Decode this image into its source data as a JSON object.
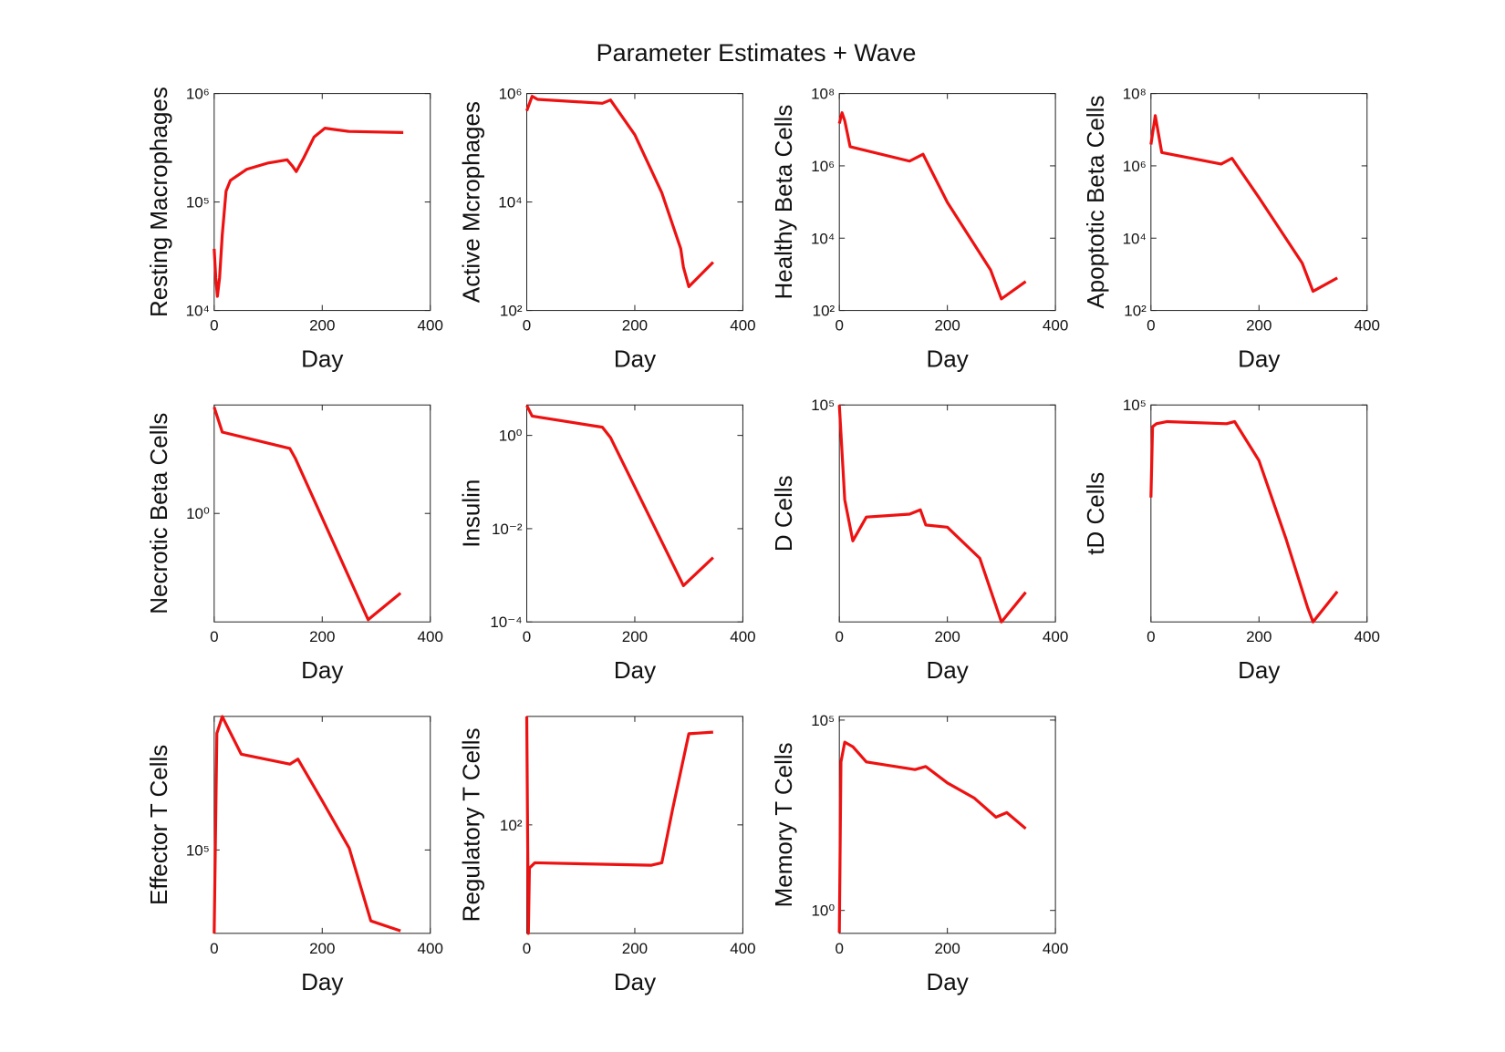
{
  "title": "Parameter Estimates + Wave",
  "chart_data": [
    {
      "type": "line",
      "ylabel": "Resting Macrophages",
      "xlabel": "Day",
      "color": "#ee1111",
      "log_y": true,
      "x": [
        0,
        3,
        6,
        10,
        15,
        22,
        30,
        60,
        100,
        135,
        145,
        152,
        165,
        185,
        205,
        250,
        350
      ],
      "values": [
        37000,
        20000,
        13500,
        20000,
        50000,
        126000,
        158000,
        200000,
        229000,
        245000,
        214000,
        191000,
        251000,
        398000,
        479000,
        447000,
        437000
      ],
      "xlim": [
        0,
        400
      ],
      "xticks": [
        0,
        200,
        400
      ],
      "ylim": [
        10000,
        1000000
      ],
      "yticks": [
        {
          "value": 10000,
          "label": "10⁴"
        },
        {
          "value": 100000,
          "label": "10⁵"
        },
        {
          "value": 1000000,
          "label": "10⁶"
        }
      ]
    },
    {
      "type": "line",
      "ylabel": "Active Mcrophages",
      "xlabel": "Day",
      "color": "#ee1111",
      "log_y": true,
      "x": [
        0,
        10,
        20,
        140,
        155,
        200,
        250,
        285,
        290,
        300,
        345
      ],
      "values": [
        480000,
        890000,
        780000,
        660000,
        760000,
        174000,
        14800,
        1380,
        630,
        275,
        776
      ],
      "xlim": [
        0,
        400
      ],
      "xticks": [
        0,
        200,
        400
      ],
      "ylim": [
        100,
        1000000
      ],
      "yticks": [
        {
          "value": 100,
          "label": "10²"
        },
        {
          "value": 10000,
          "label": "10⁴"
        },
        {
          "value": 1000000,
          "label": "10⁶"
        }
      ]
    },
    {
      "type": "line",
      "ylabel": "Healthy Beta Cells",
      "xlabel": "Day",
      "color": "#ee1111",
      "log_y": true,
      "x": [
        0,
        5,
        10,
        20,
        130,
        155,
        200,
        280,
        300,
        345
      ],
      "values": [
        14800000,
        29500000,
        17800000,
        3390000,
        1350000,
        2090000,
        97700,
        1320,
        209,
        631
      ],
      "xlim": [
        0,
        400
      ],
      "xticks": [
        0,
        200,
        400
      ],
      "ylim": [
        100,
        100000000
      ],
      "yticks": [
        {
          "value": 100,
          "label": "10²"
        },
        {
          "value": 10000,
          "label": "10⁴"
        },
        {
          "value": 1000000,
          "label": "10⁶"
        },
        {
          "value": 100000000,
          "label": "10⁸"
        }
      ]
    },
    {
      "type": "line",
      "ylabel": "Apoptotic Beta Cells",
      "xlabel": "Day",
      "color": "#ee1111",
      "log_y": true,
      "x": [
        0,
        8,
        20,
        130,
        150,
        200,
        280,
        300,
        345
      ],
      "values": [
        3890000,
        24500000,
        2340000,
        1120000,
        1620000,
        132000,
        2040,
        339,
        794
      ],
      "xlim": [
        0,
        400
      ],
      "xticks": [
        0,
        200,
        400
      ],
      "ylim": [
        100,
        100000000
      ],
      "yticks": [
        {
          "value": 100,
          "label": "10²"
        },
        {
          "value": 10000,
          "label": "10⁴"
        },
        {
          "value": 1000000,
          "label": "10⁶"
        },
        {
          "value": 100000000,
          "label": "10⁸"
        }
      ]
    },
    {
      "type": "line",
      "ylabel": "Necrotic Beta Cells",
      "xlabel": "Day",
      "color": "#ee1111",
      "log_y": true,
      "x": [
        0,
        15,
        140,
        150,
        285,
        345
      ],
      "values": [
        91,
        31.6,
        15.8,
        10.5,
        0.011,
        0.034
      ],
      "xlim": [
        0,
        400
      ],
      "xticks": [
        0,
        200,
        400
      ],
      "ylim": [
        0.01,
        100
      ],
      "yticks": [
        {
          "value": 1,
          "label": "10⁰"
        }
      ]
    },
    {
      "type": "line",
      "ylabel": "Insulin",
      "xlabel": "Day",
      "color": "#ee1111",
      "log_y": true,
      "x": [
        0,
        10,
        140,
        155,
        290,
        345
      ],
      "values": [
        4.4,
        2.6,
        1.5,
        0.9,
        0.0006,
        0.0024
      ],
      "xlim": [
        0,
        400
      ],
      "xticks": [
        0,
        200,
        400
      ],
      "ylim": [
        0.0001,
        4.5
      ],
      "yticks": [
        {
          "value": 0.0001,
          "label": "10⁻⁴"
        },
        {
          "value": 0.01,
          "label": "10⁻²"
        },
        {
          "value": 1,
          "label": "10⁰"
        }
      ]
    },
    {
      "type": "line",
      "ylabel": "D Cells",
      "xlabel": "Day",
      "color": "#ee1111",
      "log_y": true,
      "x": [
        0,
        10,
        25,
        50,
        130,
        150,
        160,
        200,
        260,
        300,
        345
      ],
      "values": [
        100000,
        4900,
        1320,
        2820,
        3090,
        3550,
        2190,
        2040,
        759,
        100,
        257
      ],
      "xlim": [
        0,
        400
      ],
      "xticks": [
        0,
        200,
        400
      ],
      "ylim": [
        100,
        100000
      ],
      "yticks": [
        {
          "value": 100000,
          "label": "10⁵"
        }
      ]
    },
    {
      "type": "line",
      "ylabel": "tD Cells",
      "xlabel": "Day",
      "color": "#ee1111",
      "log_y": true,
      "x": [
        0,
        3,
        10,
        30,
        140,
        155,
        200,
        250,
        290,
        300,
        345
      ],
      "values": [
        5250,
        50000,
        55000,
        58900,
        55000,
        58900,
        17000,
        1410,
        158,
        100,
        263
      ],
      "xlim": [
        0,
        400
      ],
      "xticks": [
        0,
        200,
        400
      ],
      "ylim": [
        100,
        100000
      ],
      "yticks": [
        {
          "value": 100000,
          "label": "10⁵"
        }
      ]
    },
    {
      "type": "line",
      "ylabel": "Effector T Cells",
      "xlabel": "Day",
      "color": "#ee1111",
      "log_y": true,
      "x": [
        0,
        5,
        15,
        50,
        140,
        155,
        200,
        250,
        290,
        345
      ],
      "values": [
        10000,
        2510000,
        3980000,
        1410000,
        1070000,
        1230000,
        389000,
        105000,
        14100,
        10700
      ],
      "xlim": [
        0,
        400
      ],
      "xticks": [
        0,
        200,
        400
      ],
      "ylim": [
        10000,
        4000000
      ],
      "yticks": [
        {
          "value": 100000,
          "label": "10⁵"
        }
      ]
    },
    {
      "type": "line",
      "ylabel": "Regulatory T Cells",
      "xlabel": "Day",
      "color": "#ee1111",
      "log_y": true,
      "x": [
        0,
        3,
        5,
        15,
        230,
        250,
        270,
        300,
        345
      ],
      "values": [
        10000,
        1,
        16,
        20,
        18,
        20,
        195,
        4790,
        5130
      ],
      "xlim": [
        0,
        400
      ],
      "xticks": [
        0,
        200,
        400
      ],
      "ylim": [
        1,
        10000
      ],
      "yticks": [
        {
          "value": 100,
          "label": "10²"
        }
      ]
    },
    {
      "type": "line",
      "ylabel": "Memory T Cells",
      "xlabel": "Day",
      "color": "#ee1111",
      "log_y": true,
      "x": [
        0,
        3,
        10,
        25,
        50,
        140,
        160,
        200,
        250,
        290,
        310,
        345
      ],
      "values": [
        0.26,
        7940,
        26300,
        20000,
        7940,
        5010,
        6030,
        2240,
        891,
        282,
        372,
        141
      ],
      "xlim": [
        0,
        400
      ],
      "xticks": [
        0,
        200,
        400
      ],
      "ylim": [
        0.25,
        125000
      ],
      "yticks": [
        {
          "value": 1,
          "label": "10⁰"
        },
        {
          "value": 100000,
          "label": "10⁵"
        }
      ]
    }
  ]
}
